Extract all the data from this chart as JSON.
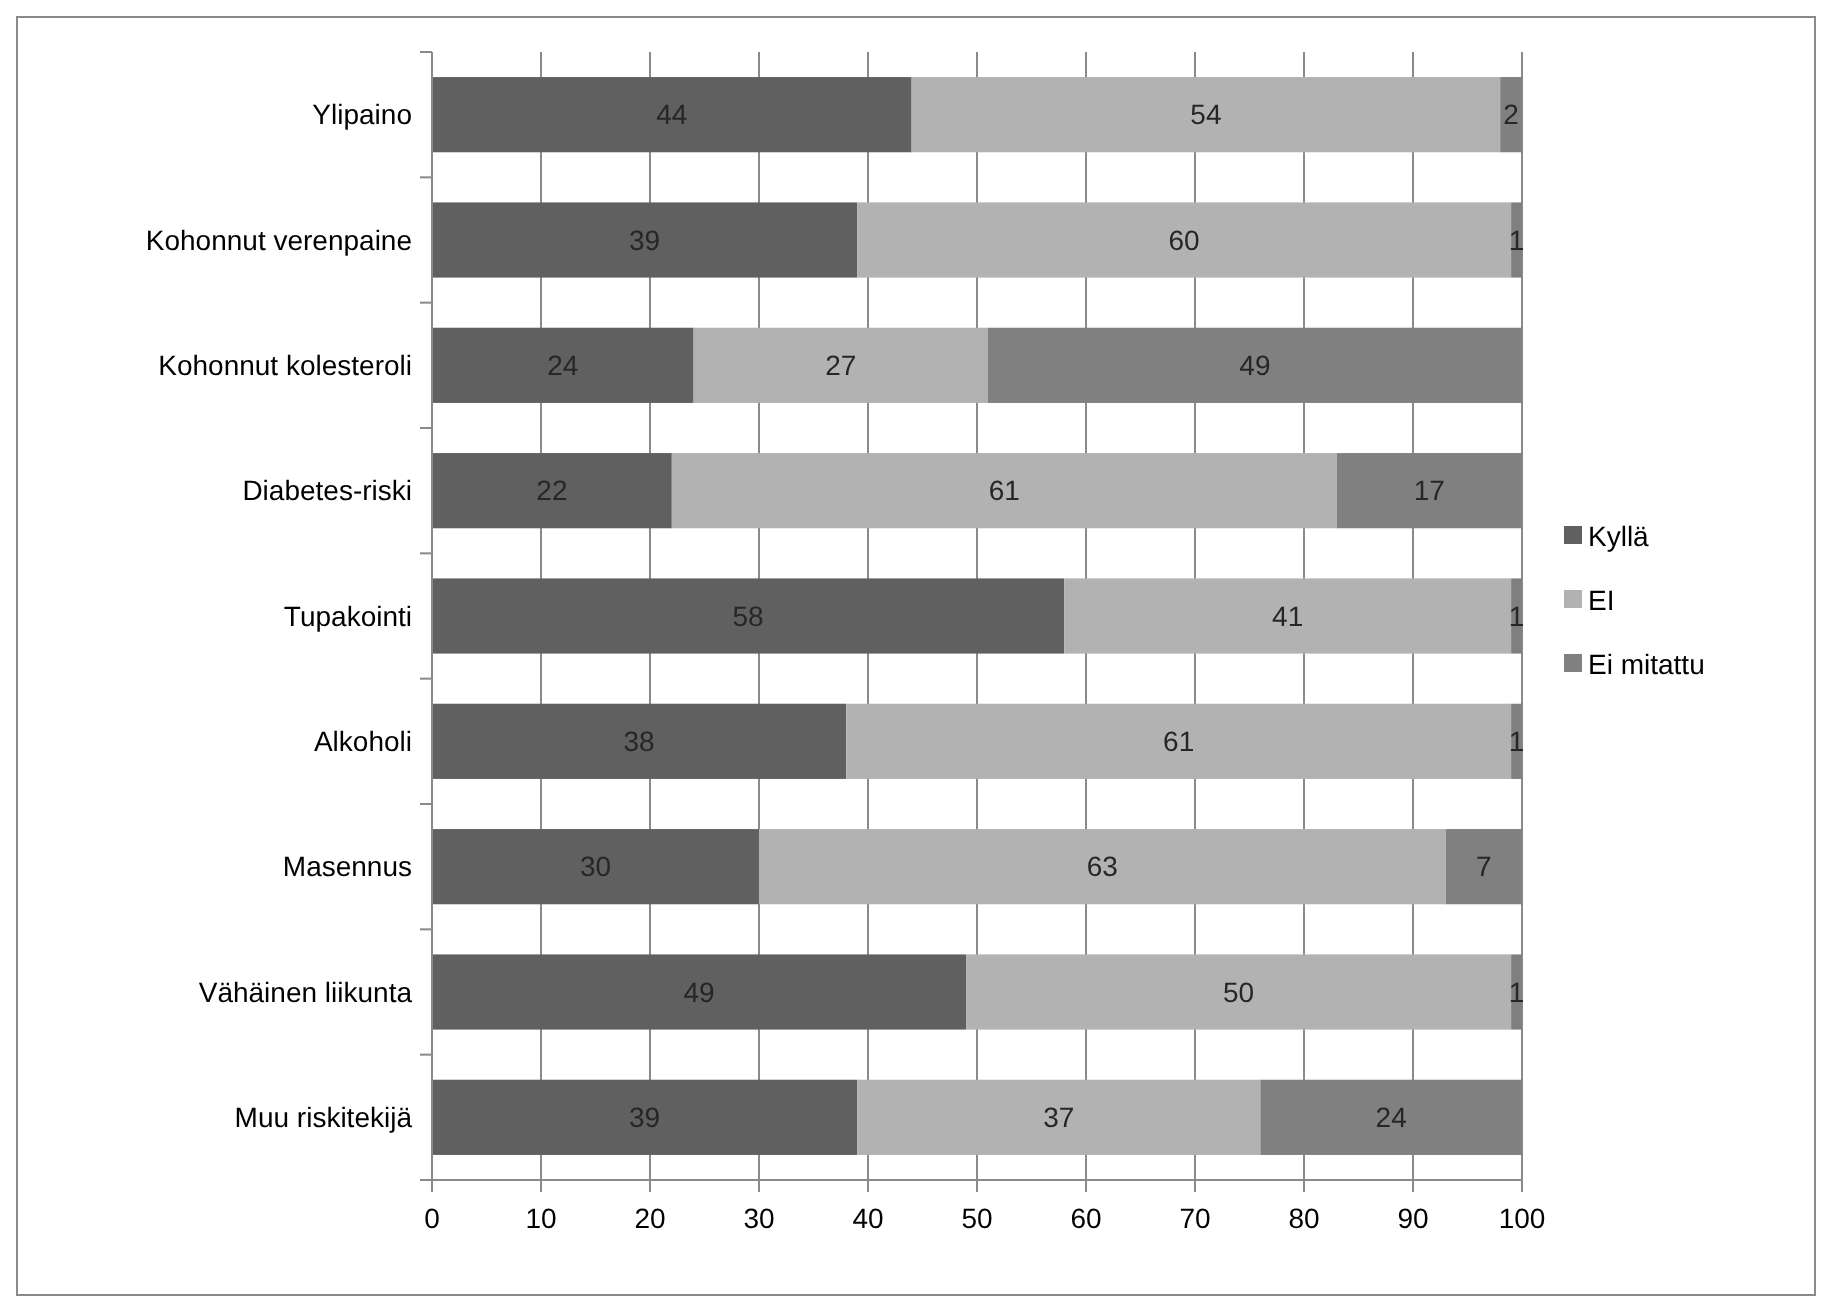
{
  "chart_data": {
    "type": "bar",
    "orientation": "horizontal",
    "stacked": true,
    "categories": [
      "Ylipaino",
      "Kohonnut verenpaine",
      "Kohonnut kolesteroli",
      "Diabetes-riski",
      "Tupakointi",
      "Alkoholi",
      "Masennus",
      "Vähäinen liikunta",
      "Muu riskitekijä"
    ],
    "series": [
      {
        "name": "Kyllä",
        "color": "#606060",
        "values": [
          44,
          39,
          24,
          22,
          58,
          38,
          30,
          49,
          39
        ]
      },
      {
        "name": "EI",
        "color": "#b2b2b2",
        "values": [
          54,
          60,
          27,
          61,
          41,
          61,
          63,
          50,
          37
        ]
      },
      {
        "name": "Ei mitattu",
        "color": "#808080",
        "values": [
          2,
          1,
          49,
          17,
          1,
          1,
          7,
          1,
          24
        ]
      }
    ],
    "xlim": [
      0,
      100
    ],
    "xticks": [
      0,
      10,
      20,
      30,
      40,
      50,
      60,
      70,
      80,
      90,
      100
    ],
    "grid": "x",
    "legend": "right",
    "data_labels": true
  }
}
